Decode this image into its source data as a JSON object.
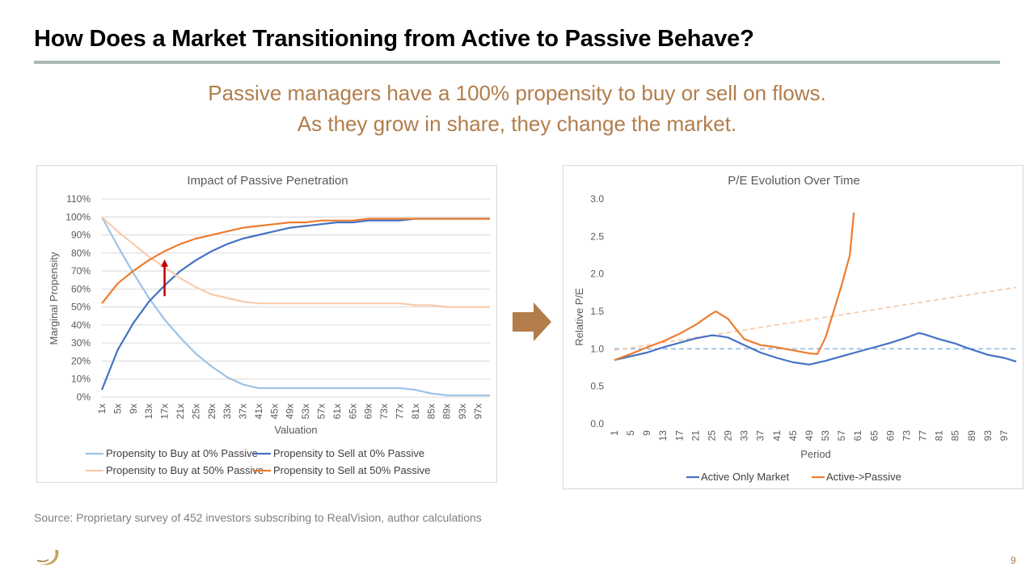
{
  "slide": {
    "title": "How Does a Market Transitioning from Active to Passive Behave?",
    "subtitle_line1": "Passive managers have a 100% propensity to buy or sell on flows.",
    "subtitle_line2": "As they grow in share, they change the market.",
    "source": "Source: Proprietary survey of 452 investors subscribing to RealVision, author calculations",
    "page_number": "9",
    "colors": {
      "title_rule": "#a8b8b4",
      "subtitle": "#b27d4b",
      "arrow": "#b27d4b"
    }
  },
  "chart_data": [
    {
      "type": "line",
      "title": "Impact of Passive Penetration",
      "xlabel": "Valuation",
      "ylabel": "Marginal Propensity",
      "ylim": [
        0,
        110
      ],
      "y_ticks": [
        "0%",
        "10%",
        "20%",
        "30%",
        "40%",
        "50%",
        "60%",
        "70%",
        "80%",
        "90%",
        "100%",
        "110%"
      ],
      "x_tick_labels": [
        "1x",
        "5x",
        "9x",
        "13x",
        "17x",
        "21x",
        "25x",
        "29x",
        "33x",
        "37x",
        "41x",
        "45x",
        "49x",
        "53x",
        "57x",
        "61x",
        "65x",
        "69x",
        "73x",
        "77x",
        "81x",
        "85x",
        "89x",
        "93x",
        "97x"
      ],
      "x": [
        1,
        5,
        9,
        13,
        17,
        21,
        25,
        29,
        33,
        37,
        41,
        45,
        49,
        53,
        57,
        61,
        65,
        69,
        73,
        77,
        81,
        85,
        89,
        93,
        97,
        100
      ],
      "legend_position": "bottom",
      "series": [
        {
          "name": "Propensity to Buy at 0% Passive",
          "color": "#9dc3e6",
          "values": [
            100,
            84,
            69,
            55,
            43,
            33,
            24,
            17,
            11,
            7,
            5,
            5,
            5,
            5,
            5,
            5,
            5,
            5,
            5,
            5,
            4,
            2,
            1,
            1,
            1,
            1
          ]
        },
        {
          "name": "Propensity to Sell at 0% Passive",
          "color": "#4472c4",
          "values": [
            4,
            26,
            41,
            53,
            62,
            70,
            76,
            81,
            85,
            88,
            90,
            92,
            94,
            95,
            96,
            97,
            97,
            98,
            98,
            98,
            99,
            99,
            99,
            99,
            99,
            99
          ]
        },
        {
          "name": "Propensity to Buy at 50% Passive",
          "color": "#f8cbad",
          "values": [
            100,
            92,
            85,
            78,
            72,
            66,
            61,
            57,
            55,
            53,
            52,
            52,
            52,
            52,
            52,
            52,
            52,
            52,
            52,
            52,
            51,
            51,
            50,
            50,
            50,
            50
          ]
        },
        {
          "name": "Propensity to Sell at 50% Passive",
          "color": "#ed7d31",
          "values": [
            52,
            63,
            70,
            76,
            81,
            85,
            88,
            90,
            92,
            94,
            95,
            96,
            97,
            97,
            98,
            98,
            98,
            99,
            99,
            99,
            99,
            99,
            99,
            99,
            99,
            99
          ]
        }
      ],
      "annotation": {
        "type": "arrow",
        "color": "#c00000",
        "x": 17,
        "y_from": 56,
        "y_to": 76
      }
    },
    {
      "type": "line",
      "title": "P/E Evolution Over Time",
      "xlabel": "Period",
      "ylabel": "Relative P/E",
      "ylim": [
        0,
        3
      ],
      "y_ticks": [
        "0.0",
        "0.5",
        "1.0",
        "1.5",
        "2.0",
        "2.5",
        "3.0"
      ],
      "x_tick_labels": [
        "1",
        "5",
        "9",
        "13",
        "17",
        "21",
        "25",
        "29",
        "33",
        "37",
        "41",
        "45",
        "49",
        "53",
        "57",
        "61",
        "65",
        "69",
        "73",
        "77",
        "81",
        "85",
        "89",
        "93",
        "97"
      ],
      "legend_position": "bottom",
      "series": [
        {
          "name": "Active Only Market",
          "color": "#4472c4",
          "points": [
            [
              1,
              0.85
            ],
            [
              5,
              0.9
            ],
            [
              9,
              0.95
            ],
            [
              13,
              1.02
            ],
            [
              17,
              1.08
            ],
            [
              21,
              1.14
            ],
            [
              25,
              1.18
            ],
            [
              27,
              1.17
            ],
            [
              29,
              1.15
            ],
            [
              33,
              1.05
            ],
            [
              37,
              0.95
            ],
            [
              41,
              0.88
            ],
            [
              45,
              0.82
            ],
            [
              49,
              0.79
            ],
            [
              53,
              0.84
            ],
            [
              57,
              0.9
            ],
            [
              61,
              0.96
            ],
            [
              65,
              1.02
            ],
            [
              69,
              1.08
            ],
            [
              73,
              1.15
            ],
            [
              76,
              1.21
            ],
            [
              77,
              1.2
            ],
            [
              81,
              1.13
            ],
            [
              85,
              1.07
            ],
            [
              88,
              1.01
            ],
            [
              93,
              0.92
            ],
            [
              97,
              0.88
            ],
            [
              100,
              0.83
            ]
          ]
        },
        {
          "name": "Active->Passive",
          "color": "#ed7d31",
          "points": [
            [
              1,
              0.85
            ],
            [
              5,
              0.93
            ],
            [
              9,
              1.02
            ],
            [
              13,
              1.1
            ],
            [
              17,
              1.2
            ],
            [
              21,
              1.32
            ],
            [
              25,
              1.47
            ],
            [
              26,
              1.5
            ],
            [
              29,
              1.4
            ],
            [
              31,
              1.26
            ],
            [
              33,
              1.13
            ],
            [
              37,
              1.05
            ],
            [
              41,
              1.02
            ],
            [
              45,
              0.98
            ],
            [
              49,
              0.94
            ],
            [
              51,
              0.93
            ],
            [
              53,
              1.15
            ],
            [
              55,
              1.5
            ],
            [
              57,
              1.85
            ],
            [
              59,
              2.25
            ],
            [
              60,
              2.82
            ]
          ]
        }
      ],
      "reference_lines": [
        {
          "color": "#9dc3e6",
          "style": "dashed",
          "from": [
            1,
            1.0
          ],
          "to": [
            100,
            1.0
          ]
        },
        {
          "color": "#f8cbad",
          "style": "dashed",
          "from": [
            1,
            0.98
          ],
          "to": [
            100,
            1.82
          ]
        }
      ]
    }
  ]
}
